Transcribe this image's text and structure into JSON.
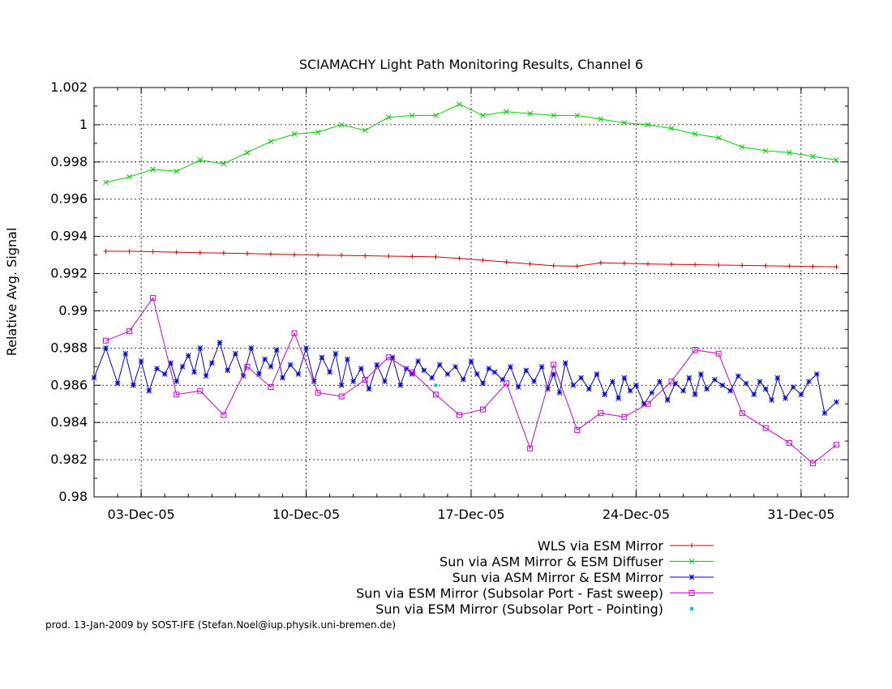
{
  "chart_data": {
    "type": "line",
    "title": "SCIAMACHY Light Path Monitoring Results, Channel 6",
    "xlabel": "",
    "ylabel": "Relative Avg. Signal",
    "xlim": [
      "2005-12-01",
      "2006-01-02"
    ],
    "ylim": [
      0.98,
      1.002
    ],
    "grid": true,
    "legend": "bottom-right",
    "x_ticks": [
      {
        "date": "2005-12-03",
        "label": "03-Dec-05"
      },
      {
        "date": "2005-12-10",
        "label": "10-Dec-05"
      },
      {
        "date": "2005-12-17",
        "label": "17-Dec-05"
      },
      {
        "date": "2005-12-24",
        "label": "24-Dec-05"
      },
      {
        "date": "2005-12-31",
        "label": "31-Dec-05"
      }
    ],
    "y_ticks": [
      {
        "value": 0.98,
        "label": "0.98"
      },
      {
        "value": 0.982,
        "label": "0.982"
      },
      {
        "value": 0.984,
        "label": "0.984"
      },
      {
        "value": 0.986,
        "label": "0.986"
      },
      {
        "value": 0.988,
        "label": "0.988"
      },
      {
        "value": 0.99,
        "label": "0.99"
      },
      {
        "value": 0.992,
        "label": "0.992"
      },
      {
        "value": 0.994,
        "label": "0.994"
      },
      {
        "value": 0.996,
        "label": "0.996"
      },
      {
        "value": 0.998,
        "label": "0.998"
      },
      {
        "value": 1.0,
        "label": "1"
      },
      {
        "value": 1.002,
        "label": "1.002"
      }
    ],
    "series": [
      {
        "name": "WLS via ESM Mirror",
        "color": "#cc0000",
        "marker": "plus",
        "x": [
          "2005-12-01",
          "2005-12-02",
          "2005-12-03",
          "2005-12-04",
          "2005-12-05",
          "2005-12-06",
          "2005-12-07",
          "2005-12-08",
          "2005-12-09",
          "2005-12-10",
          "2005-12-11",
          "2005-12-12",
          "2005-12-13",
          "2005-12-14",
          "2005-12-15",
          "2005-12-16",
          "2005-12-17",
          "2005-12-18",
          "2005-12-19",
          "2005-12-20",
          "2005-12-21",
          "2005-12-22",
          "2005-12-23",
          "2005-12-24",
          "2005-12-25",
          "2005-12-26",
          "2005-12-27",
          "2005-12-28",
          "2005-12-29",
          "2005-12-30",
          "2005-12-31",
          "2006-01-01"
        ],
        "y": [
          0.9932,
          0.9932,
          0.99318,
          0.99315,
          0.99312,
          0.9931,
          0.99308,
          0.99305,
          0.99302,
          0.993,
          0.99298,
          0.99296,
          0.99294,
          0.99292,
          0.9929,
          0.99282,
          0.99272,
          0.99262,
          0.99252,
          0.99242,
          0.9924,
          0.99258,
          0.99255,
          0.99252,
          0.9925,
          0.99248,
          0.99246,
          0.99244,
          0.99242,
          0.9924,
          0.99238,
          0.99236
        ]
      },
      {
        "name": "Sun via ASM Mirror & ESM Diffuser",
        "color": "#00cc00",
        "marker": "x",
        "x": [
          "2005-12-01",
          "2005-12-02",
          "2005-12-03",
          "2005-12-04",
          "2005-12-05",
          "2005-12-06",
          "2005-12-07",
          "2005-12-08",
          "2005-12-09",
          "2005-12-10",
          "2005-12-11",
          "2005-12-12",
          "2005-12-13",
          "2005-12-14",
          "2005-12-15",
          "2005-12-16",
          "2005-12-17",
          "2005-12-18",
          "2005-12-19",
          "2005-12-20",
          "2005-12-21",
          "2005-12-22",
          "2005-12-23",
          "2005-12-24",
          "2005-12-25",
          "2005-12-26",
          "2005-12-27",
          "2005-12-28",
          "2005-12-29",
          "2005-12-30",
          "2005-12-31",
          "2006-01-01"
        ],
        "y": [
          0.9969,
          0.9972,
          0.9976,
          0.9975,
          0.9981,
          0.9979,
          0.9985,
          0.9991,
          0.9995,
          0.9996,
          1.0,
          0.9997,
          1.0004,
          1.0005,
          1.0005,
          1.0011,
          1.0005,
          1.0007,
          1.0006,
          1.0005,
          1.0005,
          1.0003,
          1.0001,
          1.0,
          0.9998,
          0.9995,
          0.9993,
          0.9988,
          0.9986,
          0.9985,
          0.9983,
          0.9981
        ]
      },
      {
        "name": "Sun via ASM Mirror & ESM Mirror",
        "color": "#0000cc",
        "marker": "star",
        "x": [
          "2005-12-01",
          "2005-12-01",
          "2005-12-02",
          "2005-12-02",
          "2005-12-02",
          "2005-12-03",
          "2005-12-03",
          "2005-12-03",
          "2005-12-04",
          "2005-12-04",
          "2005-12-04",
          "2005-12-04",
          "2005-12-05",
          "2005-12-05",
          "2005-12-05",
          "2005-12-05",
          "2005-12-06",
          "2005-12-06",
          "2005-12-06",
          "2005-12-07",
          "2005-12-07",
          "2005-12-07",
          "2005-12-08",
          "2005-12-08",
          "2005-12-08",
          "2005-12-08",
          "2005-12-09",
          "2005-12-09",
          "2005-12-09",
          "2005-12-10",
          "2005-12-10",
          "2005-12-10",
          "2005-12-11",
          "2005-12-11",
          "2005-12-11",
          "2005-12-11",
          "2005-12-12",
          "2005-12-12",
          "2005-12-12",
          "2005-12-13",
          "2005-12-13",
          "2005-12-13",
          "2005-12-14",
          "2005-12-14",
          "2005-12-14",
          "2005-12-14",
          "2005-12-15",
          "2005-12-15",
          "2005-12-15",
          "2005-12-16",
          "2005-12-16",
          "2005-12-16",
          "2005-12-17",
          "2005-12-17",
          "2005-12-17",
          "2005-12-17",
          "2005-12-18",
          "2005-12-18",
          "2005-12-18",
          "2005-12-19",
          "2005-12-19",
          "2005-12-19",
          "2005-12-20",
          "2005-12-20",
          "2005-12-20",
          "2005-12-20",
          "2005-12-21",
          "2005-12-21",
          "2005-12-21",
          "2005-12-22",
          "2005-12-22",
          "2005-12-22",
          "2005-12-23",
          "2005-12-23",
          "2005-12-23",
          "2005-12-23",
          "2005-12-24",
          "2005-12-24",
          "2005-12-24",
          "2005-12-25",
          "2005-12-25",
          "2005-12-25",
          "2005-12-26",
          "2005-12-26",
          "2005-12-26",
          "2005-12-26",
          "2005-12-27",
          "2005-12-27",
          "2005-12-27",
          "2005-12-28",
          "2005-12-28",
          "2005-12-28",
          "2005-12-29",
          "2005-12-29",
          "2005-12-29",
          "2005-12-29",
          "2005-12-30",
          "2005-12-30",
          "2005-12-30",
          "2005-12-31",
          "2005-12-31",
          "2005-12-31",
          "2006-01-01",
          "2006-01-01"
        ],
        "y": [
          0.9864,
          0.988,
          0.9861,
          0.9877,
          0.986,
          0.9873,
          0.9857,
          0.9869,
          0.9866,
          0.9872,
          0.9862,
          0.987,
          0.9876,
          0.9867,
          0.988,
          0.9865,
          0.9872,
          0.9883,
          0.9868,
          0.9877,
          0.9865,
          0.988,
          0.9866,
          0.9874,
          0.987,
          0.9879,
          0.9864,
          0.9871,
          0.9866,
          0.988,
          0.9862,
          0.9875,
          0.9867,
          0.9877,
          0.986,
          0.9874,
          0.9862,
          0.9869,
          0.9858,
          0.9871,
          0.9862,
          0.9875,
          0.986,
          0.9869,
          0.9866,
          0.9873,
          0.9868,
          0.9864,
          0.9871,
          0.9866,
          0.987,
          0.9863,
          0.9873,
          0.9866,
          0.9861,
          0.9869,
          0.9867,
          0.9863,
          0.987,
          0.9859,
          0.9868,
          0.9862,
          0.987,
          0.9858,
          0.9866,
          0.9856,
          0.9872,
          0.986,
          0.9864,
          0.9858,
          0.9866,
          0.9855,
          0.9862,
          0.9853,
          0.9864,
          0.9857,
          0.986,
          0.985,
          0.9856,
          0.9862,
          0.9852,
          0.9861,
          0.9857,
          0.9864,
          0.9855,
          0.9866,
          0.9858,
          0.9863,
          0.986,
          0.9857,
          0.9865,
          0.9861,
          0.9855,
          0.9862,
          0.9858,
          0.9852,
          0.9864,
          0.9853,
          0.9859,
          0.9855,
          0.9862,
          0.9866,
          0.9845,
          0.9851
        ]
      },
      {
        "name": "Sun via ESM Mirror (Subsolar Port - Fast sweep)",
        "color": "#cc00cc",
        "marker": "square",
        "x": [
          "2005-12-01",
          "2005-12-02",
          "2005-12-03",
          "2005-12-04",
          "2005-12-05",
          "2005-12-06",
          "2005-12-07",
          "2005-12-08",
          "2005-12-09",
          "2005-12-10",
          "2005-12-11",
          "2005-12-12",
          "2005-12-13",
          "2005-12-14",
          "2005-12-15",
          "2005-12-16",
          "2005-12-17",
          "2005-12-18",
          "2005-12-19",
          "2005-12-20",
          "2005-12-21",
          "2005-12-22",
          "2005-12-23",
          "2005-12-24",
          "2005-12-25",
          "2005-12-26",
          "2005-12-27",
          "2005-12-28",
          "2005-12-29",
          "2005-12-30",
          "2005-12-31",
          "2006-01-01"
        ],
        "y": [
          0.9884,
          0.9889,
          0.9907,
          0.9855,
          0.9857,
          0.9844,
          0.987,
          0.9859,
          0.9888,
          0.9856,
          0.9854,
          0.9863,
          0.9875,
          0.9867,
          0.9855,
          0.9844,
          0.9847,
          0.9861,
          0.9826,
          0.9871,
          0.9836,
          0.9845,
          0.9843,
          0.985,
          0.9862,
          0.9879,
          0.9877,
          0.9845,
          0.9837,
          0.9829,
          0.9818,
          0.9828
        ]
      },
      {
        "name": "Sun via ESM Mirror (Subsolar Port - Pointing)",
        "color": "#00cccc",
        "marker": "dot",
        "x": [
          "2005-12-15"
        ],
        "y": [
          0.986
        ]
      }
    ]
  },
  "footer": {
    "text": "prod. 13-Jan-2009 by SOST-IFE (Stefan.Noel@iup.physik.uni-bremen.de)"
  }
}
